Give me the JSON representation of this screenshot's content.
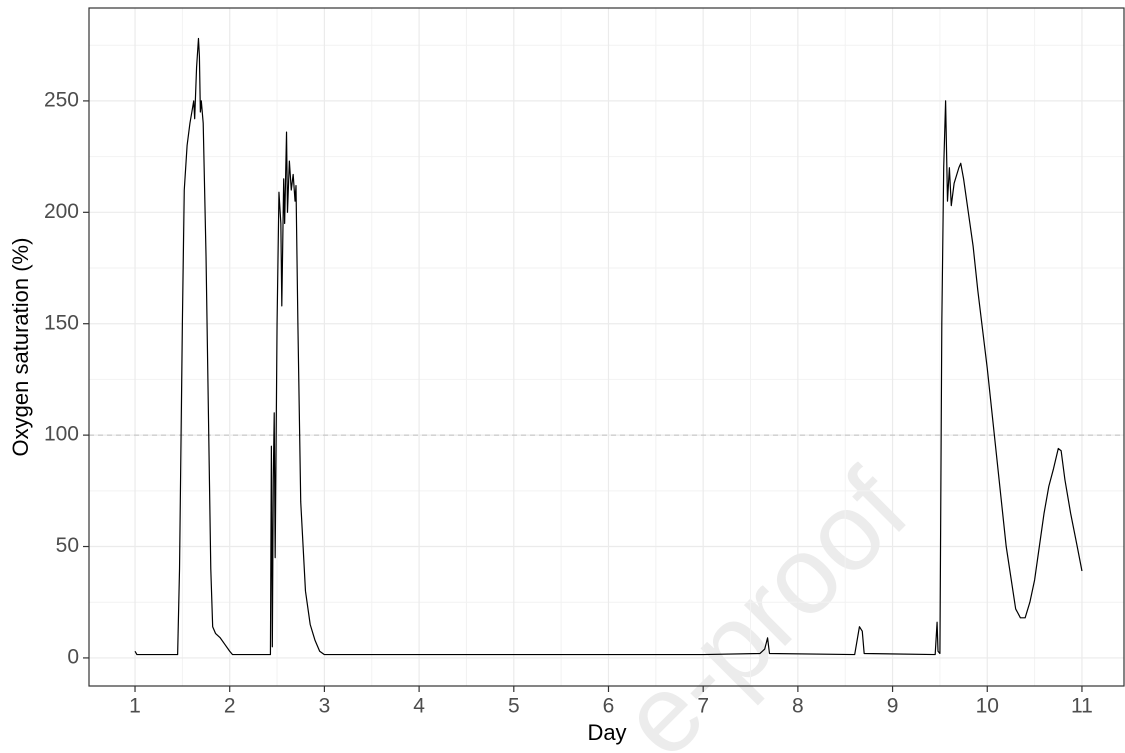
{
  "chart_data": {
    "type": "line",
    "x_label": "Day",
    "y_label": "Oxygen saturation (%)",
    "watermark": "e-proof",
    "x": [
      1.0,
      1.02,
      1.45,
      1.47,
      1.5,
      1.52,
      1.55,
      1.58,
      1.6,
      1.62,
      1.63,
      1.65,
      1.67,
      1.68,
      1.69,
      1.7,
      1.72,
      1.75,
      1.8,
      1.82,
      1.85,
      1.9,
      1.95,
      2.0,
      2.03,
      2.43,
      2.44,
      2.45,
      2.46,
      2.47,
      2.48,
      2.5,
      2.52,
      2.54,
      2.55,
      2.57,
      2.58,
      2.6,
      2.61,
      2.63,
      2.65,
      2.67,
      2.69,
      2.7,
      2.72,
      2.75,
      2.8,
      2.85,
      2.9,
      2.95,
      3.0,
      4.0,
      5.0,
      6.0,
      7.0,
      7.6,
      7.65,
      7.68,
      7.7,
      8.6,
      8.65,
      8.68,
      8.7,
      9.45,
      9.47,
      9.48,
      9.5,
      9.52,
      9.54,
      9.56,
      9.58,
      9.6,
      9.62,
      9.65,
      9.7,
      9.72,
      9.75,
      9.8,
      9.85,
      9.9,
      10.0,
      10.1,
      10.2,
      10.3,
      10.35,
      10.4,
      10.45,
      10.5,
      10.55,
      10.6,
      10.65,
      10.7,
      10.75,
      10.78,
      10.82,
      10.88,
      10.95,
      11.0
    ],
    "series": [
      {
        "name": "Oxygen saturation",
        "color": "#000000",
        "values": [
          3,
          1.5,
          1.5,
          40,
          150,
          210,
          230,
          240,
          245,
          250,
          242,
          265,
          278,
          270,
          245,
          250,
          240,
          180,
          40,
          14,
          11,
          9,
          6,
          3,
          1.5,
          1.5,
          95,
          5,
          80,
          110,
          45,
          150,
          209,
          195,
          158,
          215,
          195,
          236,
          200,
          223,
          210,
          217,
          205,
          212,
          150,
          70,
          30,
          15,
          8,
          3,
          1.5,
          1.5,
          1.5,
          1.5,
          1.5,
          2,
          4,
          9,
          2,
          1.5,
          14,
          12,
          2,
          1.5,
          16,
          3,
          2,
          150,
          220,
          250,
          205,
          220,
          203,
          213,
          220,
          222,
          215,
          200,
          185,
          165,
          130,
          90,
          50,
          22,
          18,
          18,
          25,
          35,
          50,
          65,
          77,
          85,
          94,
          93,
          80,
          65,
          50,
          39
        ]
      }
    ],
    "xlim": [
      0.514,
      11.444
    ],
    "ylim": [
      -12.6,
      291.7
    ],
    "xticks": [
      1,
      2,
      3,
      4,
      5,
      6,
      7,
      8,
      9,
      10,
      11
    ],
    "yticks": [
      0,
      50,
      100,
      150,
      200,
      250
    ],
    "minor_xticks": [
      1.5,
      2.5,
      3.5,
      4.5,
      5.5,
      6.5,
      7.5,
      8.5,
      9.5,
      10.5
    ],
    "minor_yticks": [
      25,
      75,
      125,
      175,
      225,
      275
    ],
    "hline": 100,
    "grid": true
  }
}
